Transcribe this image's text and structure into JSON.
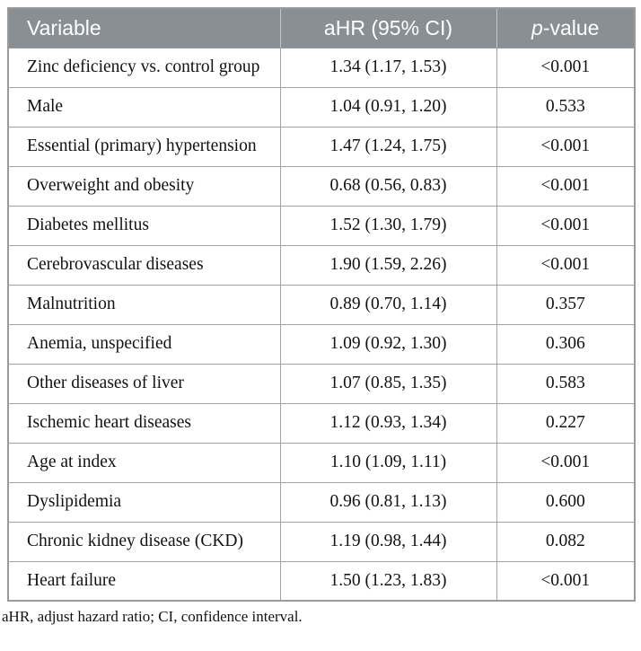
{
  "table": {
    "headers": {
      "variable": "Variable",
      "ahr_ci": "aHR (95% CI)",
      "p_italic": "p",
      "p_rest": "-value"
    },
    "rows": [
      {
        "variable": "Zinc deficiency vs. control group",
        "ahr_ci": "1.34 (1.17, 1.53)",
        "p_value": "<0.001"
      },
      {
        "variable": "Male",
        "ahr_ci": "1.04 (0.91, 1.20)",
        "p_value": "0.533"
      },
      {
        "variable": "Essential (primary) hypertension",
        "ahr_ci": "1.47 (1.24, 1.75)",
        "p_value": "<0.001"
      },
      {
        "variable": "Overweight and obesity",
        "ahr_ci": "0.68 (0.56, 0.83)",
        "p_value": "<0.001"
      },
      {
        "variable": "Diabetes mellitus",
        "ahr_ci": "1.52 (1.30, 1.79)",
        "p_value": "<0.001"
      },
      {
        "variable": "Cerebrovascular diseases",
        "ahr_ci": "1.90 (1.59, 2.26)",
        "p_value": "<0.001"
      },
      {
        "variable": "Malnutrition",
        "ahr_ci": "0.89 (0.70, 1.14)",
        "p_value": "0.357"
      },
      {
        "variable": "Anemia, unspecified",
        "ahr_ci": "1.09 (0.92, 1.30)",
        "p_value": "0.306"
      },
      {
        "variable": "Other diseases of liver",
        "ahr_ci": "1.07 (0.85, 1.35)",
        "p_value": "0.583"
      },
      {
        "variable": "Ischemic heart diseases",
        "ahr_ci": "1.12 (0.93, 1.34)",
        "p_value": "0.227"
      },
      {
        "variable": "Age at index",
        "ahr_ci": "1.10 (1.09, 1.11)",
        "p_value": "<0.001"
      },
      {
        "variable": "Dyslipidemia",
        "ahr_ci": "0.96 (0.81, 1.13)",
        "p_value": "0.600"
      },
      {
        "variable": "Chronic kidney disease (CKD)",
        "ahr_ci": "1.19 (0.98, 1.44)",
        "p_value": "0.082"
      },
      {
        "variable": "Heart failure",
        "ahr_ci": "1.50 (1.23, 1.83)",
        "p_value": "<0.001"
      }
    ]
  },
  "footnote": "aHR, adjust hazard ratio; CI, confidence interval.",
  "colors": {
    "header_bg": "#8a8f93",
    "header_text": "#ffffff",
    "header_divider": "#c3c7c9",
    "border": "#a3a3a3",
    "outer_border": "#9b9b9b",
    "body_text": "#121212",
    "page_bg": "#ffffff"
  }
}
